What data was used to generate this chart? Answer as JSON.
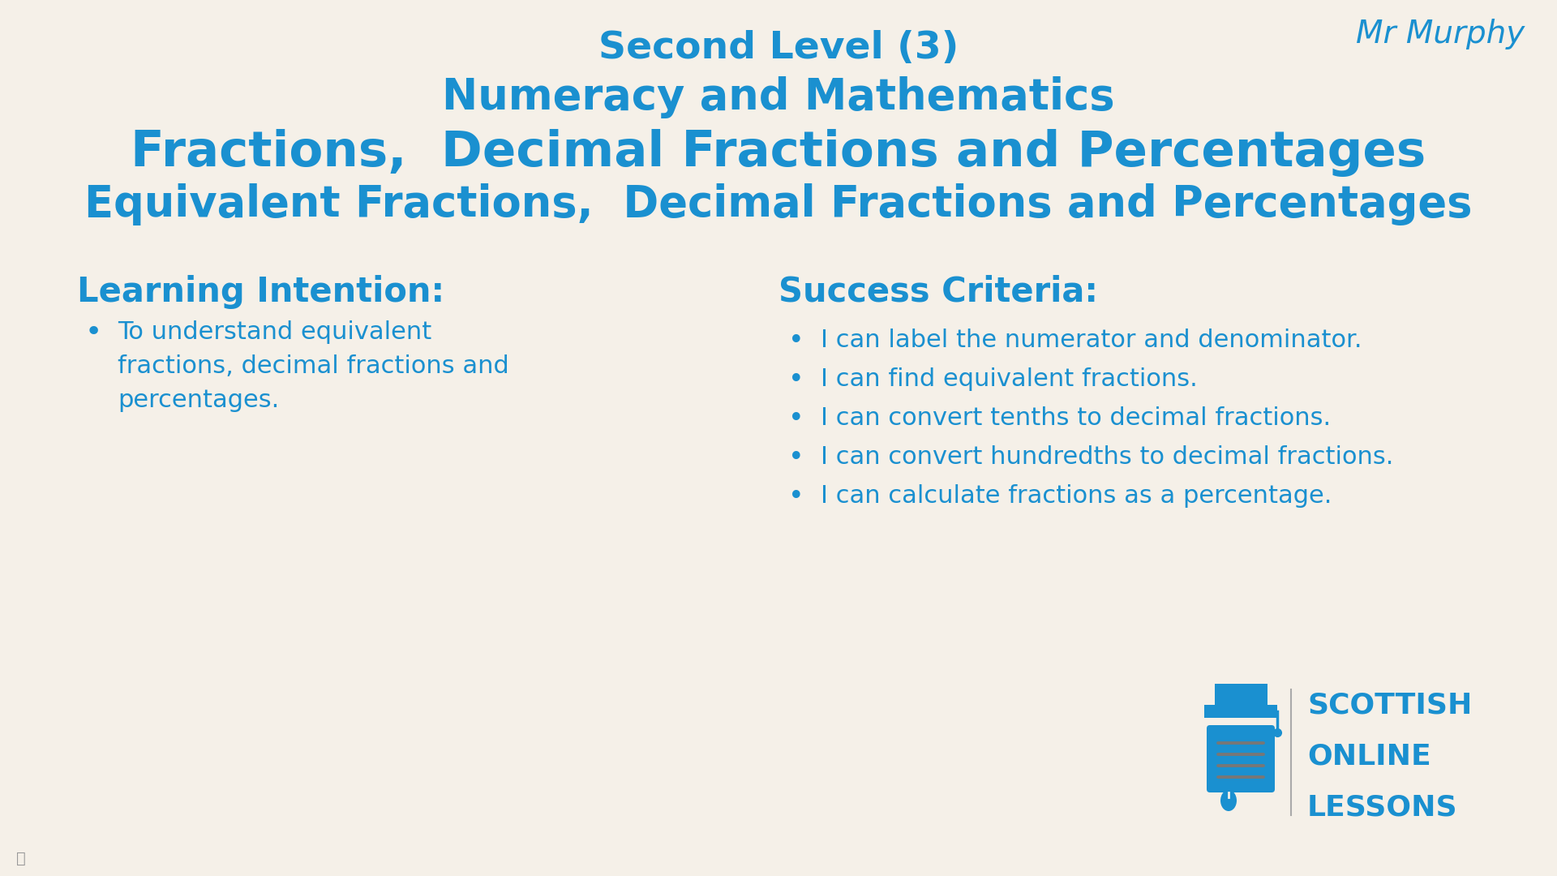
{
  "background_color": "#f5f0e8",
  "blue_color": "#1a90d0",
  "title1": "Second Level (3)",
  "title2": "Numeracy and Mathematics",
  "title3": "Fractions,  Decimal Fractions and Percentages",
  "title4": "Equivalent Fractions,  Decimal Fractions and Percentages",
  "author": "Mr Murphy",
  "li_header": "Learning Intention:",
  "li_lines": [
    "To understand equivalent",
    "fractions, decimal fractions and",
    "percentages."
  ],
  "sc_header": "Success Criteria:",
  "sc_bullets": [
    "I can label the numerator and denominator.",
    "I can find equivalent fractions.",
    "I can convert tenths to decimal fractions.",
    "I can convert hundredths to decimal fractions.",
    "I can calculate fractions as a percentage."
  ],
  "sol_text_lines": [
    "SCOTTISH",
    "ONLINE",
    "LESSONS"
  ],
  "title1_fontsize": 34,
  "title2_fontsize": 38,
  "title3_fontsize": 44,
  "title4_fontsize": 38,
  "author_fontsize": 28,
  "section_header_fontsize": 30,
  "body_fontsize": 22,
  "sol_fontsize": 26
}
